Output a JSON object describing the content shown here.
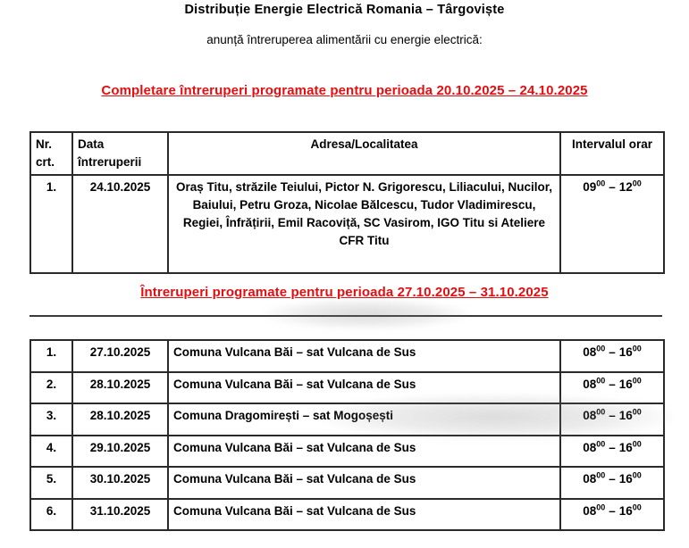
{
  "colors": {
    "heading_red": "#e20f12",
    "table_border": "#2a2a2a",
    "text": "#000000",
    "background": "#ffffff"
  },
  "header": {
    "title": "Distribuție Energie Electrică Romania – Târgoviște",
    "subtitle": "anunță întreruperea alimentării cu energie electrică:"
  },
  "section1": {
    "heading": "Completare întreruperi programate pentru perioada 20.10.2025 – 24.10.2025",
    "table": {
      "headers": {
        "nr": "Nr.\ncrt.",
        "date": "Data\nîntreruperii",
        "address": "Adresa/Localitatea",
        "interval": "Intervalul orar"
      },
      "rows": [
        {
          "nr": "1.",
          "date": "24.10.2025",
          "address": "Oraș Titu, străzile Teiului, Pictor N. Grigorescu, Liliacului, Nucilor, Baiului, Petru Groza, Nicolae Bălcescu, Tudor Vladimirescu, Regiei, Înfrățirii, Emil Racoviță, SC Vasirom, IGO Titu si Ateliere CFR Titu",
          "interval": {
            "from": "09",
            "from_sup": "00",
            "sep": "–",
            "to": "12",
            "to_sup": "00"
          }
        }
      ]
    }
  },
  "section2": {
    "heading": "Întreruperi programate pentru perioada 27.10.2025 – 31.10.2025",
    "table": {
      "rows": [
        {
          "nr": "1.",
          "date": "27.10.2025",
          "address": "Comuna Vulcana Băi – sat Vulcana de Sus",
          "interval": {
            "from": "08",
            "from_sup": "00",
            "sep": "–",
            "to": "16",
            "to_sup": "00"
          }
        },
        {
          "nr": "2.",
          "date": "28.10.2025",
          "address": "Comuna Vulcana Băi – sat Vulcana de Sus",
          "interval": {
            "from": "08",
            "from_sup": "00",
            "sep": "–",
            "to": "16",
            "to_sup": "00"
          }
        },
        {
          "nr": "3.",
          "date": "28.10.2025",
          "address": "Comuna Dragomirești – sat Mogoșești",
          "interval": {
            "from": "08",
            "from_sup": "00",
            "sep": "–",
            "to": "16",
            "to_sup": "00"
          }
        },
        {
          "nr": "4.",
          "date": "29.10.2025",
          "address": "Comuna Vulcana Băi – sat Vulcana de Sus",
          "interval": {
            "from": "08",
            "from_sup": "00",
            "sep": "–",
            "to": "16",
            "to_sup": "00"
          }
        },
        {
          "nr": "5.",
          "date": "30.10.2025",
          "address": "Comuna Vulcana Băi – sat Vulcana de Sus",
          "interval": {
            "from": "08",
            "from_sup": "00",
            "sep": "–",
            "to": "16",
            "to_sup": "00"
          }
        },
        {
          "nr": "6.",
          "date": "31.10.2025",
          "address": "Comuna Vulcana Băi – sat Vulcana de Sus",
          "interval": {
            "from": "08",
            "from_sup": "00",
            "sep": "–",
            "to": "16",
            "to_sup": "00"
          }
        }
      ]
    }
  }
}
